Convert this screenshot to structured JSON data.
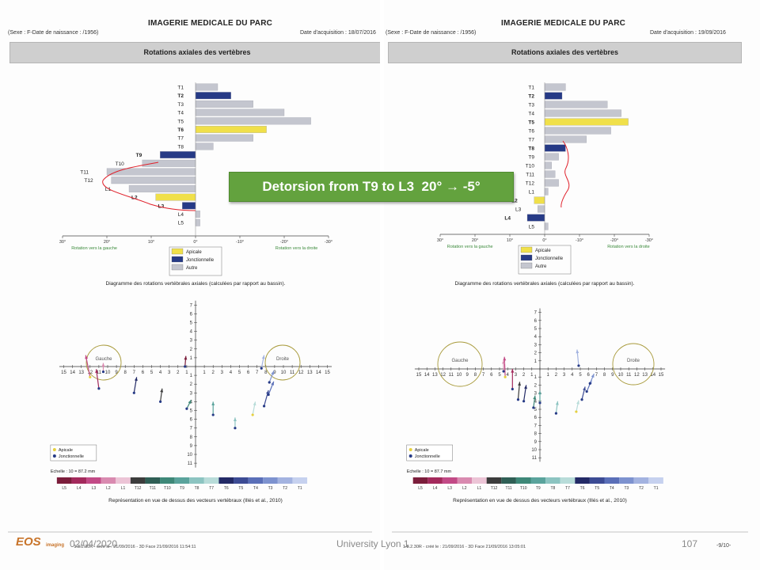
{
  "callout": {
    "text": "Detorsion from T9 to L3  20° → -5°"
  },
  "footer": {
    "date": "02/04/2020",
    "org": "University Lyon 1",
    "page": "107",
    "eos_logo": "EOS",
    "eos_sub": "imaging",
    "sheet_page": "-9/10-"
  },
  "panels": [
    {
      "header_title": "IMAGERIE MEDICALE DU PARC",
      "patient": "(Sexe : F-Date de naissance :          /1956)",
      "acq_date": "Date d'acquisition : 18/07/2016",
      "banner": "Rotations axiales des vertèbres",
      "diagram_caption": "Diagramme des rotations vertébrales axiales (calculées par rapport au bassin).",
      "rot_left_label": "Rotation vers la gauche",
      "rot_right_label": "Rotation vers la droite",
      "circle_left": "Gauche",
      "circle_right": "Droite",
      "echelle": "Echelle : 10 = 87.2 mm",
      "legend2_apical": "Apicale",
      "legend2_junction": "Jonctionnelle",
      "vector_caption": "Représentation en vue de dessus des vecteurs vertébraux (Illés et al., 2010)",
      "footer_line": "- 1.8.2.30R - créé le : 21/09/2016 - 3D Face 21/09/2016 11:54:11"
    },
    {
      "header_title": "IMAGERIE MEDICALE DU PARC",
      "patient": "(Sexe : F-Date de naissance :          /1956)",
      "acq_date": "Date d'acquisition : 19/09/2016",
      "banner": "Rotations axiales des vertèbres",
      "diagram_caption": "Diagramme des rotations vertébrales axiales (calculées par rapport au bassin).",
      "rot_left_label": "Rotation vers la gauche",
      "rot_right_label": "Rotation vers la droite",
      "circle_left": "Gauche",
      "circle_right": "Droite",
      "echelle": "Echelle : 10 = 87.7 mm",
      "legend2_apical": "Apicale",
      "legend2_junction": "Jonctionnelle",
      "vector_caption": "Représentation en vue de dessus des vecteurs vertébraux (Illés et al., 2010)",
      "footer_line": "1.8.2.30R - créé le : 21/09/2016 - 3D Face 21/09/2016 13:05:01"
    }
  ],
  "legend": {
    "apical": "Apicale",
    "junction": "Jonctionnelle",
    "other": "Autre",
    "colors": {
      "apical": "#f0e04a",
      "junction": "#263a86",
      "other": "#c4c6cf"
    }
  },
  "chart_data": [
    {
      "type": "bar",
      "orientation": "horizontal",
      "title": "Rotations axiales des vertèbres",
      "date": "18/07/2016",
      "categories": [
        "T1",
        "T2",
        "T3",
        "T4",
        "T5",
        "T6",
        "T7",
        "T8",
        "T9",
        "T10",
        "T11",
        "T12",
        "L1",
        "L2",
        "L3",
        "L4",
        "L5"
      ],
      "values": [
        -5,
        -8,
        -13,
        -20,
        -26,
        -16,
        -13,
        -4,
        8,
        12,
        20,
        19,
        15,
        9,
        3,
        -1,
        -1
      ],
      "types": [
        "other",
        "junction",
        "other",
        "other",
        "other",
        "apical",
        "other",
        "other",
        "junction",
        "other",
        "other",
        "other",
        "other",
        "apical",
        "junction",
        "other",
        "other"
      ],
      "bold_labels": [
        "T2",
        "T6",
        "T9",
        "L2",
        "L3"
      ],
      "xlim": [
        30,
        -30
      ],
      "xticks": [
        "30°",
        "20°",
        "10°",
        "0°",
        "-10°",
        "-20°",
        "-30°"
      ],
      "xlabel_left": "Rotation vers la gauche",
      "xlabel_right": "Rotation vers la droite",
      "annotation": "red curve outlining T9–L3 rotation"
    },
    {
      "type": "bar",
      "orientation": "horizontal",
      "title": "Rotations axiales des vertèbres",
      "date": "19/09/2016",
      "categories": [
        "T1",
        "T2",
        "T3",
        "T4",
        "T5",
        "T6",
        "T7",
        "T8",
        "T9",
        "T10",
        "T11",
        "T12",
        "L1",
        "L2",
        "L3",
        "L4",
        "L5"
      ],
      "values": [
        -6,
        -5,
        -18,
        -22,
        -24,
        -19,
        -12,
        -6,
        -4,
        -2,
        -3,
        -4,
        -1,
        3,
        2,
        5,
        -1
      ],
      "types": [
        "other",
        "junction",
        "other",
        "other",
        "apical",
        "other",
        "other",
        "junction",
        "other",
        "other",
        "other",
        "other",
        "other",
        "apical",
        "other",
        "junction",
        "other"
      ],
      "bold_labels": [
        "T2",
        "T5",
        "T8",
        "L2",
        "L4"
      ],
      "xlim": [
        30,
        -30
      ],
      "xticks": [
        "30°",
        "20°",
        "10°",
        "0°",
        "-10°",
        "-20°",
        "-30°"
      ],
      "xlabel_left": "Rotation vers la gauche",
      "xlabel_right": "Rotation vers la droite",
      "annotation": "red curve outlining T9–L1"
    }
  ],
  "vector_axes": {
    "x_ticks": [
      "15",
      "14",
      "13",
      "12",
      "11",
      "10",
      "9",
      "8",
      "7",
      "6",
      "5",
      "4",
      "3",
      "2",
      "1",
      "",
      "1",
      "2",
      "3",
      "4",
      "5",
      "6",
      "7",
      "8",
      "9",
      "10",
      "11",
      "12",
      "13",
      "14",
      "15"
    ],
    "y_ticks_up": [
      "7",
      "6",
      "5",
      "4",
      "3",
      "2",
      "1"
    ],
    "y_ticks_down": [
      "1",
      "2",
      "3",
      "4",
      "5",
      "6",
      "7",
      "8",
      "9",
      "10",
      "11"
    ]
  },
  "vector_colorbar": {
    "labels": [
      "L5",
      "L4",
      "L3",
      "L2",
      "L1",
      "T12",
      "T11",
      "T10",
      "T9",
      "T8",
      "T7",
      "T6",
      "T5",
      "T4",
      "T3",
      "T2",
      "T1"
    ],
    "colors": [
      "#7b1d3b",
      "#a32a5c",
      "#c24a86",
      "#d98ab0",
      "#ecc4d6",
      "#3c3c3c",
      "#2f5f55",
      "#3e8878",
      "#5aa39c",
      "#8cc4c1",
      "#b8dcd9",
      "#232a66",
      "#3c4b94",
      "#5a6fb8",
      "#7d92cf",
      "#a3b3e0",
      "#c6d1ef"
    ]
  }
}
